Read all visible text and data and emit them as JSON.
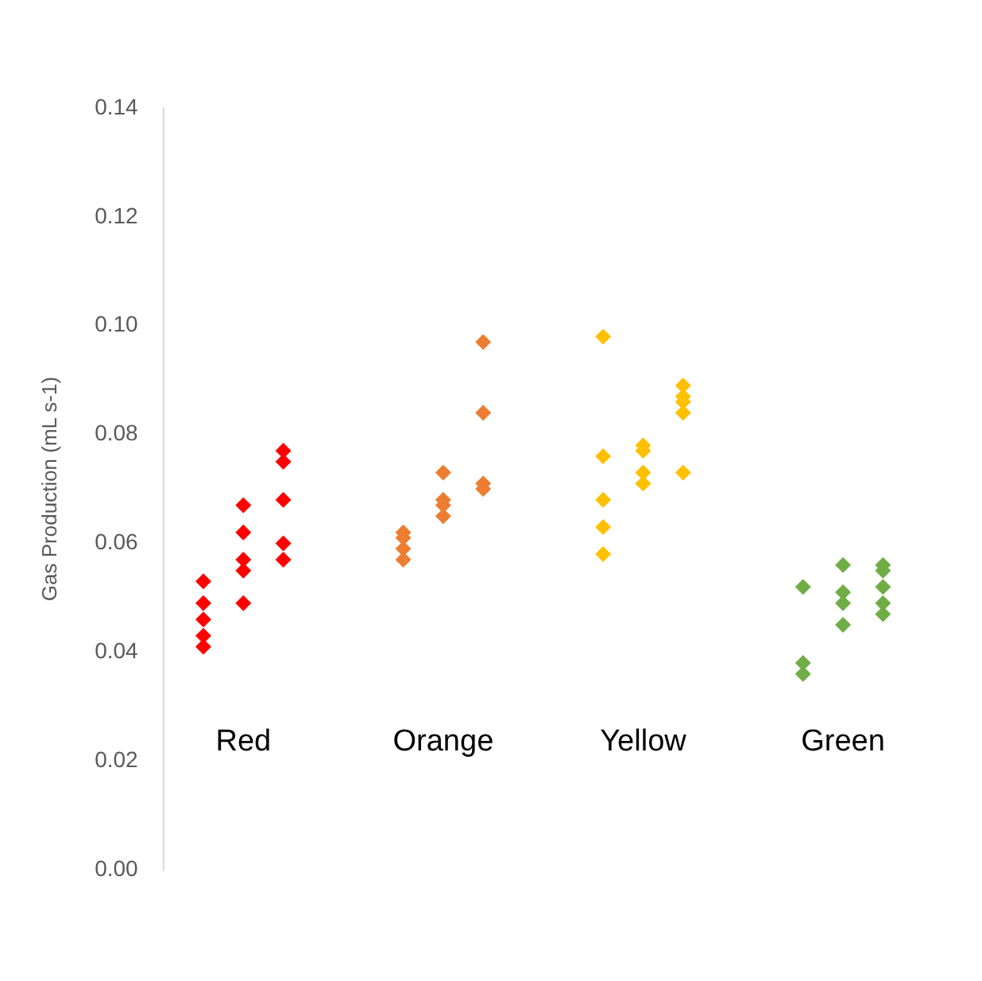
{
  "chart_data": {
    "type": "scatter",
    "ylabel": "Gas Production (mL s-1)",
    "categories": [
      "Red",
      "Orange",
      "Yellow",
      "Green"
    ],
    "ylim": [
      0,
      0.14
    ],
    "yticks": [
      {
        "value": 0,
        "label": "0.00"
      },
      {
        "value": 0.02,
        "label": "0.02"
      },
      {
        "value": 0.04,
        "label": "0.04"
      },
      {
        "value": 0.06,
        "label": "0.06"
      },
      {
        "value": 0.08,
        "label": "0.08"
      },
      {
        "value": 0.1,
        "label": "0.10"
      },
      {
        "value": 0.12,
        "label": "0.12"
      },
      {
        "value": 0.14,
        "label": "0.14"
      }
    ],
    "grid": false,
    "legend": false,
    "marker": "diamond",
    "series": [
      {
        "x": [
          "Red",
          "Red",
          "Red",
          "Red",
          "Red",
          "Orange",
          "Orange",
          "Orange",
          "Orange",
          "Yellow",
          "Yellow",
          "Yellow",
          "Yellow",
          "Yellow",
          "Green",
          "Green",
          "Green"
        ],
        "values": [
          0.053,
          0.049,
          0.046,
          0.043,
          0.041,
          0.062,
          0.061,
          0.059,
          0.057,
          0.098,
          0.076,
          0.068,
          0.063,
          0.058,
          0.052,
          0.038,
          0.036
        ],
        "colors": [
          "#ff0000",
          "#ff0000",
          "#ff0000",
          "#ff0000",
          "#ff0000",
          "#ed7d31",
          "#ed7d31",
          "#ed7d31",
          "#ed7d31",
          "#ffc000",
          "#ffc000",
          "#ffc000",
          "#ffc000",
          "#ffc000",
          "#70ad47",
          "#70ad47",
          "#70ad47"
        ]
      },
      {
        "x": [
          "Red",
          "Red",
          "Red",
          "Red",
          "Red",
          "Orange",
          "Orange",
          "Orange",
          "Orange",
          "Yellow",
          "Yellow",
          "Yellow",
          "Yellow",
          "Green",
          "Green",
          "Green",
          "Green"
        ],
        "values": [
          0.067,
          0.062,
          0.057,
          0.055,
          0.049,
          0.073,
          0.068,
          0.067,
          0.065,
          0.078,
          0.077,
          0.073,
          0.071,
          0.056,
          0.051,
          0.049,
          0.045
        ],
        "colors": [
          "#ff0000",
          "#ff0000",
          "#ff0000",
          "#ff0000",
          "#ff0000",
          "#ed7d31",
          "#ed7d31",
          "#ed7d31",
          "#ed7d31",
          "#ffc000",
          "#ffc000",
          "#ffc000",
          "#ffc000",
          "#70ad47",
          "#70ad47",
          "#70ad47",
          "#70ad47"
        ]
      },
      {
        "x": [
          "Red",
          "Red",
          "Red",
          "Red",
          "Red",
          "Orange",
          "Orange",
          "Orange",
          "Orange",
          "Yellow",
          "Yellow",
          "Yellow",
          "Yellow",
          "Yellow",
          "Green",
          "Green",
          "Green",
          "Green",
          "Green"
        ],
        "values": [
          0.077,
          0.075,
          0.068,
          0.06,
          0.057,
          0.097,
          0.084,
          0.071,
          0.07,
          0.089,
          0.087,
          0.086,
          0.084,
          0.073,
          0.056,
          0.055,
          0.052,
          0.049,
          0.047
        ],
        "colors": [
          "#ff0000",
          "#ff0000",
          "#ff0000",
          "#ff0000",
          "#ff0000",
          "#ed7d31",
          "#ed7d31",
          "#ed7d31",
          "#ed7d31",
          "#ffc000",
          "#ffc000",
          "#ffc000",
          "#ffc000",
          "#ffc000",
          "#70ad47",
          "#70ad47",
          "#70ad47",
          "#70ad47",
          "#70ad47"
        ]
      }
    ]
  }
}
